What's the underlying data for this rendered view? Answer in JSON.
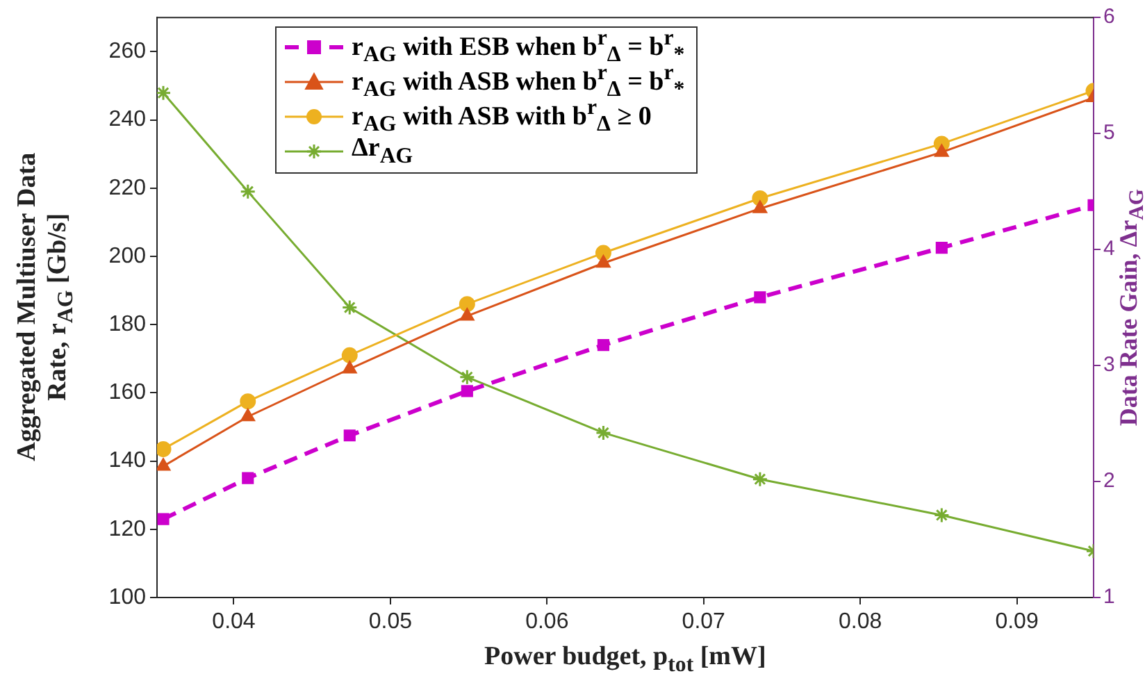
{
  "chart_data": {
    "type": "line",
    "xlabel": "Power budget, p$_{tot}$ [mW]",
    "ylabel": "Aggregated Multiuser Data Rate, r$_{AG}$ [Gb/s]",
    "y2label": "Data Rate Gain, Δr$_{AG}$",
    "x": [
      0.0355,
      0.0409,
      0.0474,
      0.0549,
      0.0636,
      0.0736,
      0.0852,
      0.0949
    ],
    "series": [
      {
        "name": "r$_{AG}$ with ESB when b$^{r}$$_{Δ}$ = b$^{r}$$_{*}$",
        "color": "#cc00cc",
        "marker": "square",
        "line_style": "dashed",
        "values": [
          123,
          135,
          147.5,
          160.5,
          174,
          188,
          202.5,
          215
        ]
      },
      {
        "name": "r$_{AG}$ with ASB when b$^{r}$$_{Δ}$ = b$^{r}$$_{*}$",
        "color": "#d95319",
        "marker": "triangle",
        "line_style": "solid",
        "values": [
          138.5,
          153,
          167,
          182.5,
          198,
          214,
          230.5,
          246.5
        ]
      },
      {
        "name": "r$_{AG}$ with ASB with b$^{r}$$_{Δ}$ ≥ 0",
        "color": "#edb120",
        "marker": "circle",
        "line_style": "solid",
        "values": [
          143.5,
          157.5,
          171,
          186,
          201,
          217,
          233,
          248.5
        ]
      },
      {
        "name": "Δr$_{AG}$",
        "color": "#77ac30",
        "marker": "cross",
        "line_style": "solid",
        "axis": "y2",
        "values": [
          5.35,
          4.5,
          3.5,
          2.9,
          2.42,
          2.02,
          1.71,
          1.4
        ]
      }
    ],
    "xlim": [
      0.0351,
      0.0949
    ],
    "xticks": [
      0.04,
      0.05,
      0.06,
      0.07,
      0.08,
      0.09
    ],
    "ylim": [
      100,
      270
    ],
    "yticks": [
      100,
      120,
      140,
      160,
      180,
      200,
      220,
      240,
      260
    ],
    "y2lim": [
      1,
      6
    ],
    "y2ticks": [
      1,
      2,
      3,
      4,
      5,
      6
    ],
    "grid": false,
    "legend": "top"
  }
}
